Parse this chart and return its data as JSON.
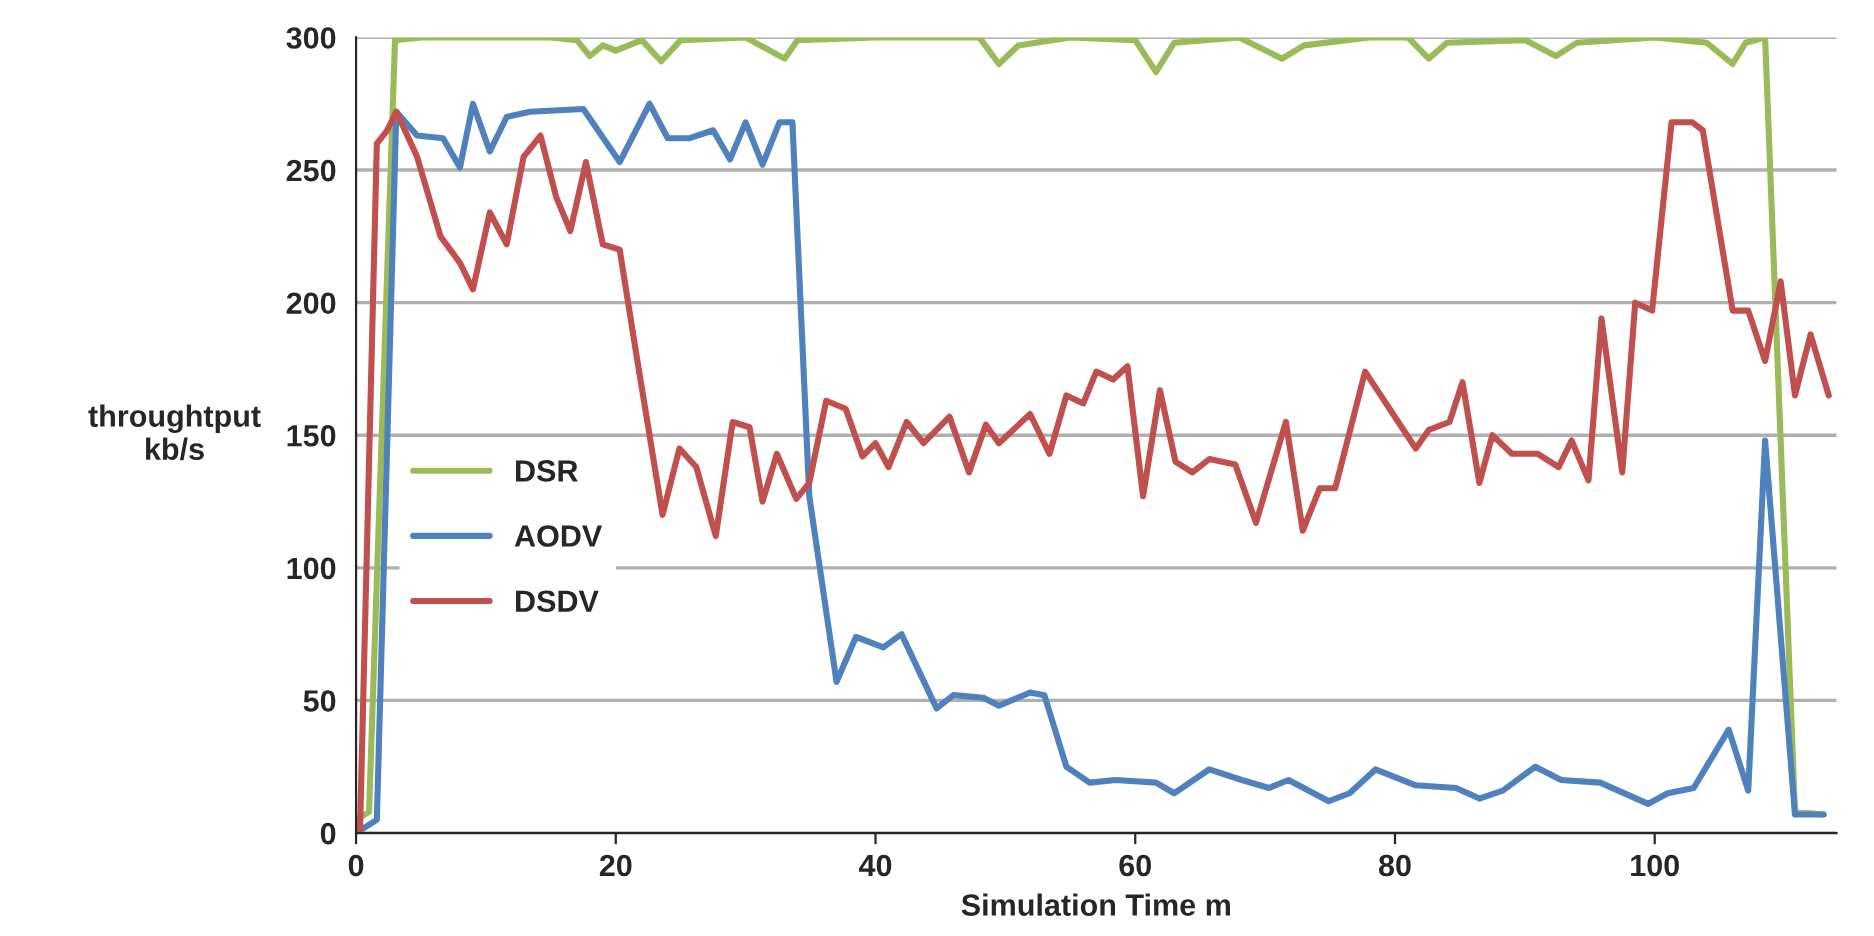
{
  "chart_data": {
    "type": "line",
    "xlabel": "Simulation Time m",
    "ylabel": "throughtput\nkb/s",
    "xlim": [
      0,
      114
    ],
    "xticks": [
      0,
      20,
      40,
      60,
      80,
      100
    ],
    "ylim": [
      0,
      300
    ],
    "yticks": [
      0,
      50,
      100,
      150,
      200,
      250,
      300
    ],
    "grid": "y",
    "legend": "left",
    "marker": "none",
    "line_style": "solid",
    "series": [
      {
        "name": "DSR",
        "color": "#9bbb59",
        "x": [
          0,
          1,
          3,
          5,
          10,
          15,
          17,
          18,
          19,
          20,
          22,
          23.5,
          25,
          30,
          33,
          34,
          40,
          45,
          48,
          49.5,
          51,
          55,
          60,
          61.6,
          63,
          68,
          71.3,
          73,
          78,
          81,
          82.6,
          84,
          90,
          92.4,
          94,
          100,
          104,
          106,
          107,
          108.5,
          110.8,
          113
        ],
        "values": [
          5,
          8,
          299,
          300,
          300,
          300,
          299,
          293,
          297,
          295,
          299,
          291,
          299,
          300,
          292,
          299,
          300,
          300,
          300,
          290,
          297,
          300,
          299,
          287,
          298,
          300,
          292,
          297,
          300,
          300,
          292,
          298,
          299,
          293,
          298,
          300,
          298,
          290,
          298,
          300,
          8,
          7
        ]
      },
      {
        "name": "AODV",
        "color": "#4f81bd",
        "x": [
          0,
          1.6,
          3.1,
          4.7,
          6.7,
          8,
          9,
          10.3,
          11.6,
          13.4,
          17.5,
          20.3,
          22.6,
          24,
          25.7,
          27.5,
          28.8,
          30,
          31.3,
          32.6,
          33.6,
          34.9,
          37,
          38.5,
          40.6,
          42,
          44.7,
          46,
          48.3,
          49.5,
          51.9,
          53,
          54.7,
          56.5,
          58.5,
          61.6,
          63,
          65.7,
          68.2,
          70.3,
          71.8,
          74.9,
          76.5,
          78.5,
          81.6,
          84.7,
          86.5,
          88.3,
          90.8,
          92.8,
          95.8,
          99.5,
          101,
          103,
          105.7,
          107.2,
          108.5,
          110.8,
          113
        ],
        "values": [
          0,
          5,
          272,
          263,
          262,
          251,
          275,
          257,
          270,
          272,
          273,
          253,
          275,
          262,
          262,
          265,
          254,
          268,
          252,
          268,
          268,
          127,
          57,
          74,
          70,
          75,
          47,
          52,
          51,
          48,
          53,
          52,
          25,
          19,
          20,
          19,
          15,
          24,
          20,
          17,
          20,
          12,
          15,
          24,
          18,
          17,
          13,
          16,
          25,
          20,
          19,
          11,
          15,
          17,
          39,
          16,
          148,
          7,
          7
        ]
      },
      {
        "name": "DSDV",
        "color": "#c0504d",
        "x": [
          0.3,
          1.6,
          2.4,
          3.1,
          4.7,
          6.5,
          8,
          9,
          10.3,
          11.6,
          12.9,
          14.2,
          15.4,
          16.5,
          17.7,
          19,
          20.3,
          21.6,
          23.6,
          24.9,
          26.2,
          27.7,
          29,
          30.3,
          31.3,
          32.4,
          33.9,
          34.9,
          36.2,
          37.7,
          39,
          40,
          41,
          42.4,
          43.7,
          45.7,
          47.2,
          48.5,
          49.5,
          51.9,
          53.4,
          54.7,
          56,
          57,
          58.3,
          59.4,
          60.6,
          61.9,
          63.1,
          64.4,
          65.7,
          67.7,
          69.3,
          71.6,
          72.9,
          74.2,
          75.4,
          77.7,
          81.6,
          82.6,
          84.2,
          85.2,
          86.5,
          87.5,
          89,
          91,
          92.6,
          93.6,
          94.9,
          95.9,
          97.5,
          98.5,
          99.8,
          101.3,
          102.9,
          103.7,
          106,
          107.2,
          108.5,
          109.7,
          110.8,
          112,
          113.4
        ],
        "values": [
          0,
          260,
          265,
          272,
          255,
          225,
          215,
          205,
          234,
          222,
          255,
          263,
          240,
          227,
          253,
          222,
          220,
          180,
          120,
          145,
          138,
          112,
          155,
          153,
          125,
          143,
          126,
          132,
          163,
          160,
          142,
          147,
          138,
          155,
          147,
          157,
          136,
          154,
          147,
          158,
          143,
          165,
          162,
          174,
          171,
          176,
          127,
          167,
          140,
          136,
          141,
          139,
          117,
          155,
          114,
          130,
          130,
          174,
          145,
          152,
          155,
          170,
          132,
          150,
          143,
          143,
          138,
          148,
          133,
          194,
          136,
          200,
          197,
          268,
          268,
          265,
          197,
          197,
          178,
          208,
          165,
          188,
          165
        ]
      }
    ]
  }
}
